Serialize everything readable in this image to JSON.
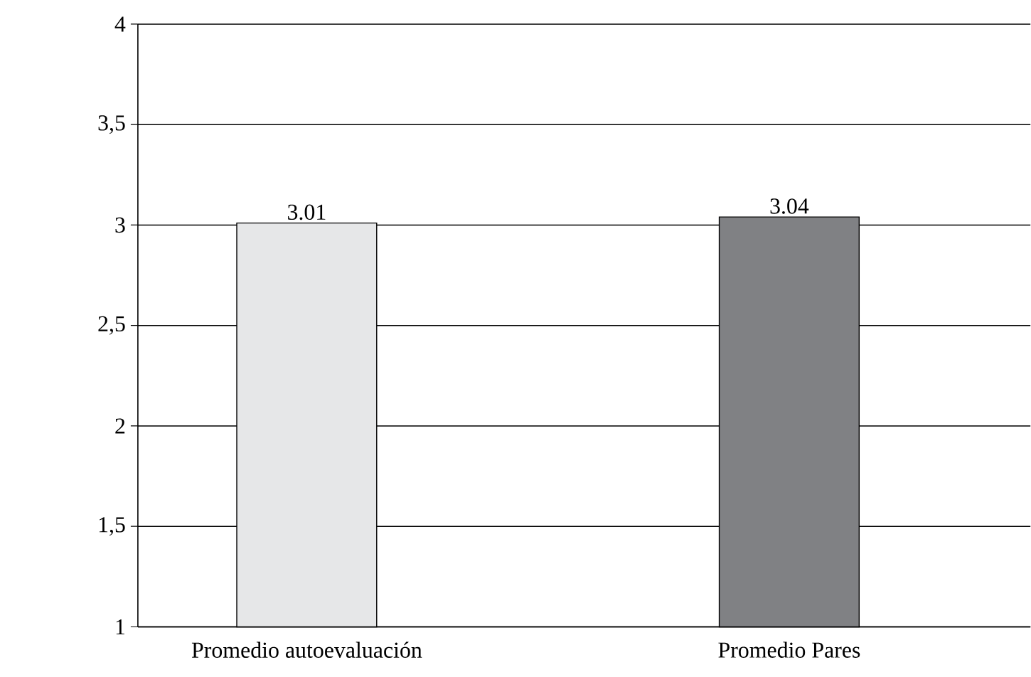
{
  "chart_data": {
    "type": "bar",
    "categories": [
      "Promedio autoevaluación",
      "Promedio Pares"
    ],
    "values": [
      3.01,
      3.04
    ],
    "colors": [
      "#e6e7e8",
      "#808184"
    ],
    "ylim": [
      1,
      4
    ],
    "yticks": [
      1,
      {
        "value": 1.5,
        "label": "1,5"
      },
      2,
      {
        "value": 2.5,
        "label": "2,5"
      },
      3,
      {
        "value": 3.5,
        "label": "3,5"
      },
      4
    ],
    "grid": "y",
    "data_labels": true
  }
}
